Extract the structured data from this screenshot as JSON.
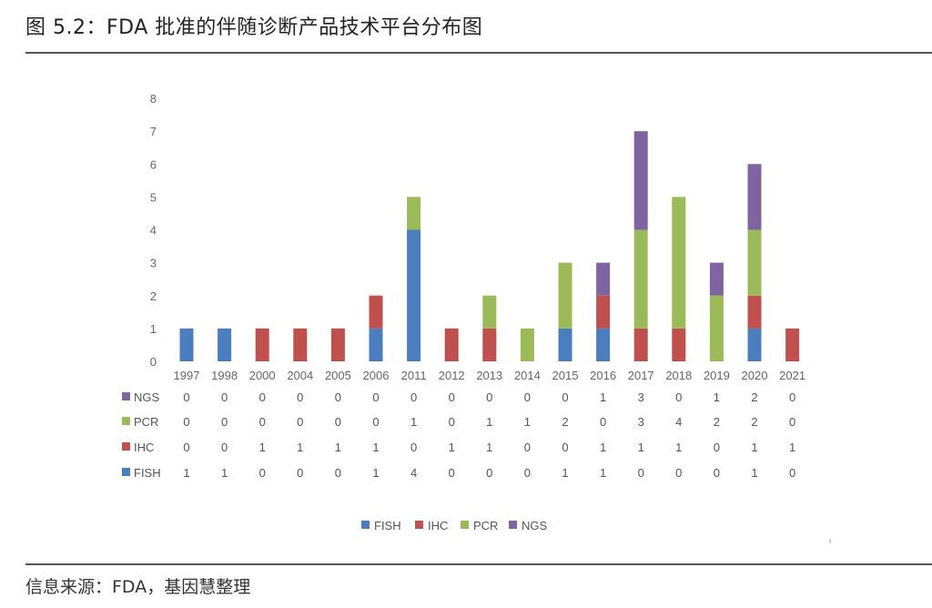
{
  "figure": {
    "title": "图 5.2：FDA 批准的伴随诊断产品技术平台分布图",
    "source": "信息来源：FDA，基因慧整理"
  },
  "chart_data": {
    "type": "bar",
    "stacked": true,
    "categories": [
      "1997",
      "1998",
      "2000",
      "2004",
      "2005",
      "2006",
      "2011",
      "2012",
      "2013",
      "2014",
      "2015",
      "2016",
      "2017",
      "2018",
      "2019",
      "2020",
      "2021"
    ],
    "series": [
      {
        "name": "FISH",
        "color": "#4a7ebf",
        "values": [
          1,
          1,
          0,
          0,
          0,
          1,
          4,
          0,
          0,
          0,
          1,
          1,
          0,
          0,
          0,
          1,
          0
        ]
      },
      {
        "name": "IHC",
        "color": "#c0504d",
        "values": [
          0,
          0,
          1,
          1,
          1,
          1,
          0,
          1,
          1,
          0,
          0,
          1,
          1,
          1,
          0,
          1,
          1
        ]
      },
      {
        "name": "PCR",
        "color": "#9bbb59",
        "values": [
          0,
          0,
          0,
          0,
          0,
          0,
          1,
          0,
          1,
          1,
          2,
          0,
          3,
          4,
          2,
          2,
          0
        ]
      },
      {
        "name": "NGS",
        "color": "#8064a2",
        "values": [
          0,
          0,
          0,
          0,
          0,
          0,
          0,
          0,
          0,
          0,
          0,
          1,
          3,
          0,
          1,
          2,
          0
        ]
      }
    ],
    "ylim": [
      0,
      8
    ],
    "yticks": [
      "0",
      "1",
      "2",
      "3",
      "4",
      "5",
      "6",
      "7",
      "8"
    ],
    "grid": false,
    "legend_position": "bottom",
    "data_table": true,
    "table_row_order": [
      "NGS",
      "PCR",
      "IHC",
      "FISH"
    ]
  }
}
